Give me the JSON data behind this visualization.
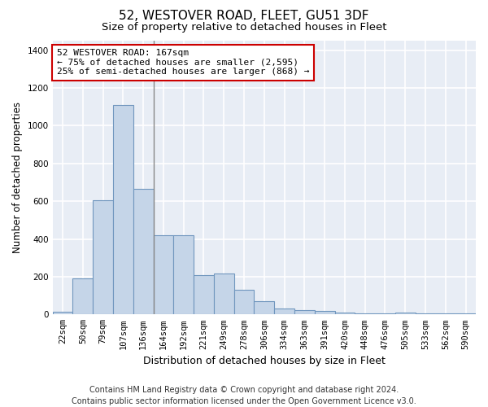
{
  "title": "52, WESTOVER ROAD, FLEET, GU51 3DF",
  "subtitle": "Size of property relative to detached houses in Fleet",
  "xlabel": "Distribution of detached houses by size in Fleet",
  "ylabel": "Number of detached properties",
  "footer": "Contains HM Land Registry data © Crown copyright and database right 2024.\nContains public sector information licensed under the Open Government Licence v3.0.",
  "categories": [
    "22sqm",
    "50sqm",
    "79sqm",
    "107sqm",
    "136sqm",
    "164sqm",
    "192sqm",
    "221sqm",
    "249sqm",
    "278sqm",
    "306sqm",
    "334sqm",
    "363sqm",
    "391sqm",
    "420sqm",
    "448sqm",
    "476sqm",
    "505sqm",
    "533sqm",
    "562sqm",
    "590sqm"
  ],
  "values": [
    15,
    190,
    605,
    1110,
    665,
    420,
    420,
    210,
    215,
    130,
    70,
    30,
    25,
    20,
    10,
    5,
    5,
    10,
    5,
    5,
    5
  ],
  "bar_color": "#c5d5e8",
  "bar_edge_color": "#7096be",
  "annotation_text": "52 WESTOVER ROAD: 167sqm\n← 75% of detached houses are smaller (2,595)\n25% of semi-detached houses are larger (868) →",
  "annotation_box_color": "white",
  "annotation_box_edge_color": "#cc0000",
  "vline_x_index": 5,
  "vline_color": "#888888",
  "ylim": [
    0,
    1450
  ],
  "yticks": [
    0,
    200,
    400,
    600,
    800,
    1000,
    1200,
    1400
  ],
  "background_color": "#ffffff",
  "plot_background_color": "#e8edf5",
  "grid_color": "#ffffff",
  "title_fontsize": 11,
  "subtitle_fontsize": 9.5,
  "annotation_fontsize": 8,
  "footer_fontsize": 7,
  "ylabel_fontsize": 8.5,
  "xlabel_fontsize": 9,
  "tick_fontsize": 7.5
}
